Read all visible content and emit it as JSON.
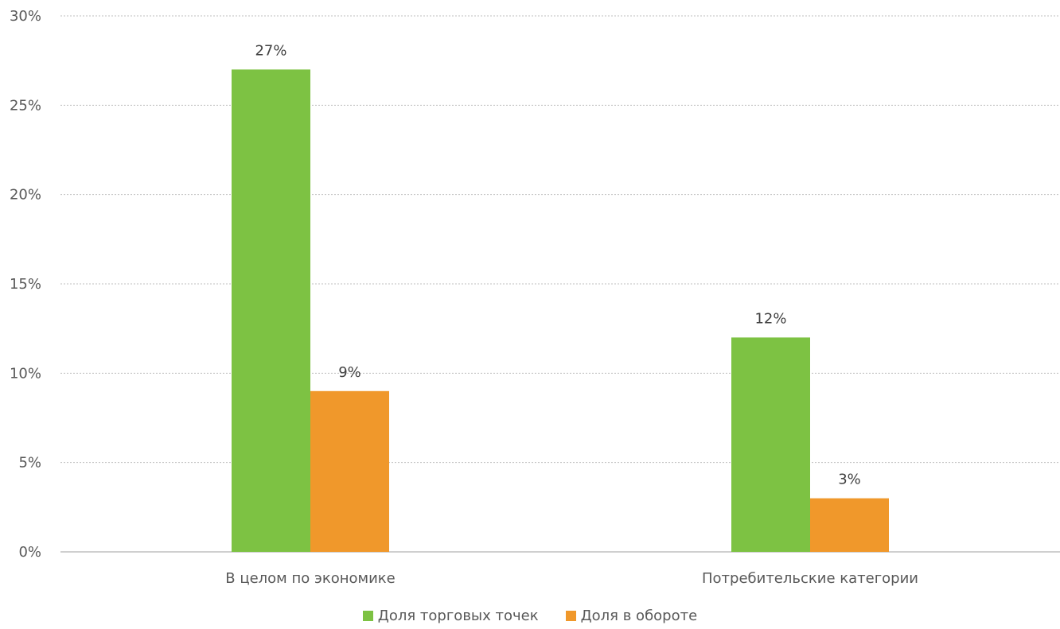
{
  "chart_data": {
    "type": "bar",
    "categories": [
      "В целом по экономике",
      "Потребительские категории"
    ],
    "series": [
      {
        "name": "Доля торговых точек",
        "values": [
          27,
          12
        ],
        "color": "#7DC243",
        "labels": [
          "27%",
          "12%"
        ]
      },
      {
        "name": "Доля в обороте",
        "values": [
          9,
          3
        ],
        "color": "#F0982B",
        "labels": [
          "9%",
          "3%"
        ]
      }
    ],
    "y_ticks": [
      "0%",
      "5%",
      "10%",
      "15%",
      "20%",
      "25%",
      "30%"
    ],
    "ylim": [
      0,
      30
    ],
    "grid": true,
    "legend_position": "bottom"
  }
}
